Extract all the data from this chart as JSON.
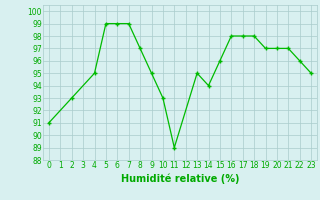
{
  "x": [
    0,
    2,
    4,
    5,
    6,
    7,
    8,
    9,
    10,
    11,
    13,
    14,
    15,
    16,
    17,
    18,
    19,
    20,
    21,
    22,
    23
  ],
  "y": [
    91,
    93,
    95,
    99,
    99,
    99,
    97,
    95,
    93,
    89,
    95,
    94,
    96,
    98,
    98,
    98,
    97,
    97,
    97,
    96,
    95
  ],
  "line_color": "#00bb00",
  "marker": "+",
  "marker_color": "#00bb00",
  "bg_color": "#d8f0f0",
  "grid_color": "#aacccc",
  "xlabel": "Humidité relative (%)",
  "xlabel_color": "#00aa00",
  "xlim": [
    -0.5,
    23.5
  ],
  "ylim": [
    88,
    100.5
  ],
  "yticks": [
    88,
    89,
    90,
    91,
    92,
    93,
    94,
    95,
    96,
    97,
    98,
    99,
    100
  ],
  "xticks": [
    0,
    1,
    2,
    3,
    4,
    5,
    6,
    7,
    8,
    9,
    10,
    11,
    12,
    13,
    14,
    15,
    16,
    17,
    18,
    19,
    20,
    21,
    22,
    23
  ],
  "tick_color": "#00aa00",
  "tick_fontsize": 5.5,
  "xlabel_fontsize": 7,
  "linewidth": 0.9,
  "markersize": 3.5
}
